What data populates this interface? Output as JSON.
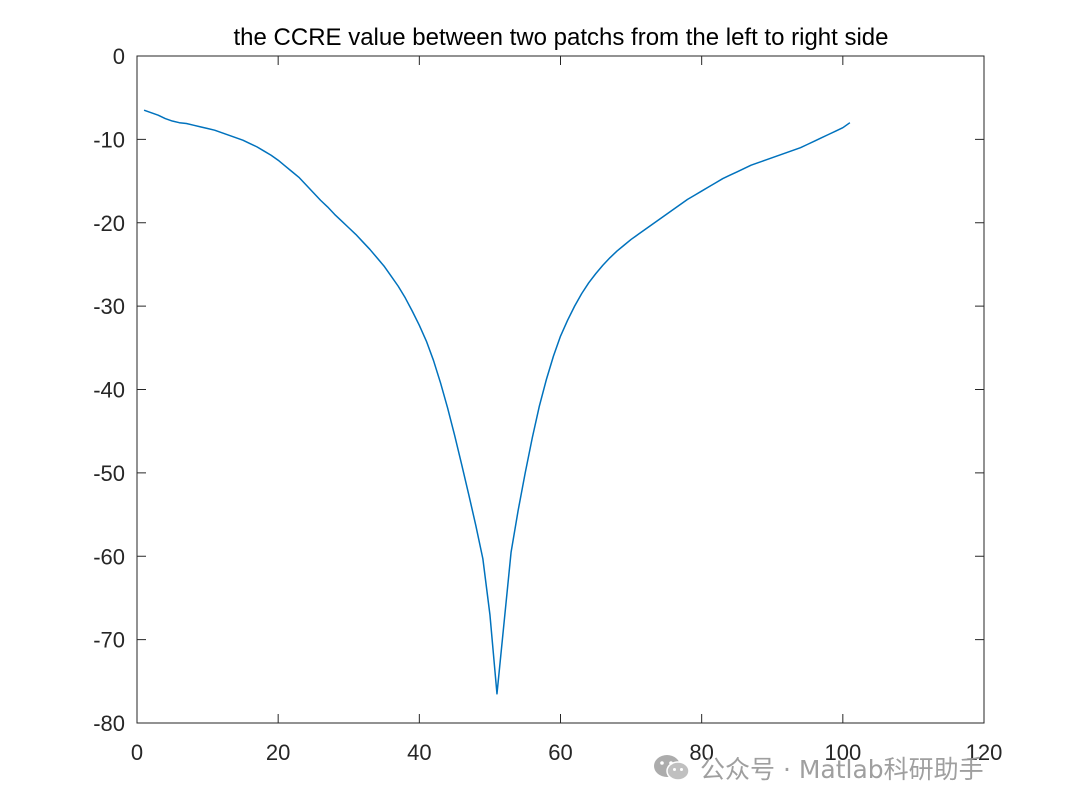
{
  "chart_data": {
    "type": "line",
    "title": "the CCRE value between two patchs from the left to right side",
    "xlabel": "",
    "ylabel": "",
    "xlim": [
      0,
      120
    ],
    "ylim": [
      -80,
      0
    ],
    "xticks": [
      0,
      20,
      40,
      60,
      80,
      100,
      120
    ],
    "yticks": [
      0,
      -10,
      -20,
      -30,
      -40,
      -50,
      -60,
      -70,
      -80
    ],
    "grid": false,
    "box": true,
    "series": [
      {
        "name": "",
        "color": "#0072BD",
        "x": [
          1,
          2,
          3,
          4,
          5,
          6,
          7,
          8,
          9,
          10,
          11,
          12,
          13,
          14,
          15,
          16,
          17,
          18,
          19,
          20,
          21,
          22,
          23,
          24,
          25,
          26,
          27,
          28,
          29,
          30,
          31,
          32,
          33,
          34,
          35,
          36,
          37,
          38,
          39,
          40,
          41,
          42,
          43,
          44,
          45,
          46,
          47,
          48,
          49,
          50,
          51,
          52,
          53,
          54,
          55,
          56,
          57,
          58,
          59,
          60,
          61,
          62,
          63,
          64,
          65,
          66,
          67,
          68,
          69,
          70,
          71,
          72,
          73,
          74,
          75,
          76,
          77,
          78,
          79,
          80,
          81,
          82,
          83,
          84,
          85,
          86,
          87,
          88,
          89,
          90,
          91,
          92,
          93,
          94,
          95,
          96,
          97,
          98,
          99,
          100,
          101
        ],
        "y": [
          -6.5,
          -6.8,
          -7.1,
          -7.5,
          -7.8,
          -8.0,
          -8.1,
          -8.3,
          -8.5,
          -8.7,
          -8.9,
          -9.2,
          -9.5,
          -9.8,
          -10.1,
          -10.5,
          -10.9,
          -11.4,
          -11.9,
          -12.5,
          -13.2,
          -13.9,
          -14.6,
          -15.5,
          -16.4,
          -17.3,
          -18.1,
          -19.0,
          -19.8,
          -20.6,
          -21.4,
          -22.3,
          -23.2,
          -24.2,
          -25.2,
          -26.4,
          -27.6,
          -29.0,
          -30.6,
          -32.3,
          -34.2,
          -36.5,
          -39.2,
          -42.2,
          -45.5,
          -49.0,
          -52.6,
          -56.3,
          -60.3,
          -67.0,
          -76.5,
          -68.0,
          -59.5,
          -54.5,
          -50.0,
          -45.8,
          -42.0,
          -38.8,
          -36.0,
          -33.6,
          -31.7,
          -30.0,
          -28.5,
          -27.2,
          -26.1,
          -25.1,
          -24.2,
          -23.4,
          -22.7,
          -22.0,
          -21.4,
          -20.8,
          -20.2,
          -19.6,
          -19.0,
          -18.4,
          -17.8,
          -17.2,
          -16.7,
          -16.2,
          -15.7,
          -15.2,
          -14.7,
          -14.3,
          -13.9,
          -13.5,
          -13.1,
          -12.8,
          -12.5,
          -12.2,
          -11.9,
          -11.6,
          -11.3,
          -11.0,
          -10.6,
          -10.2,
          -9.8,
          -9.4,
          -9.0,
          -8.6,
          -8.0
        ]
      }
    ]
  },
  "watermark": {
    "icon": "wechat-icon",
    "text": "公众号 · Matlab科研助手"
  }
}
